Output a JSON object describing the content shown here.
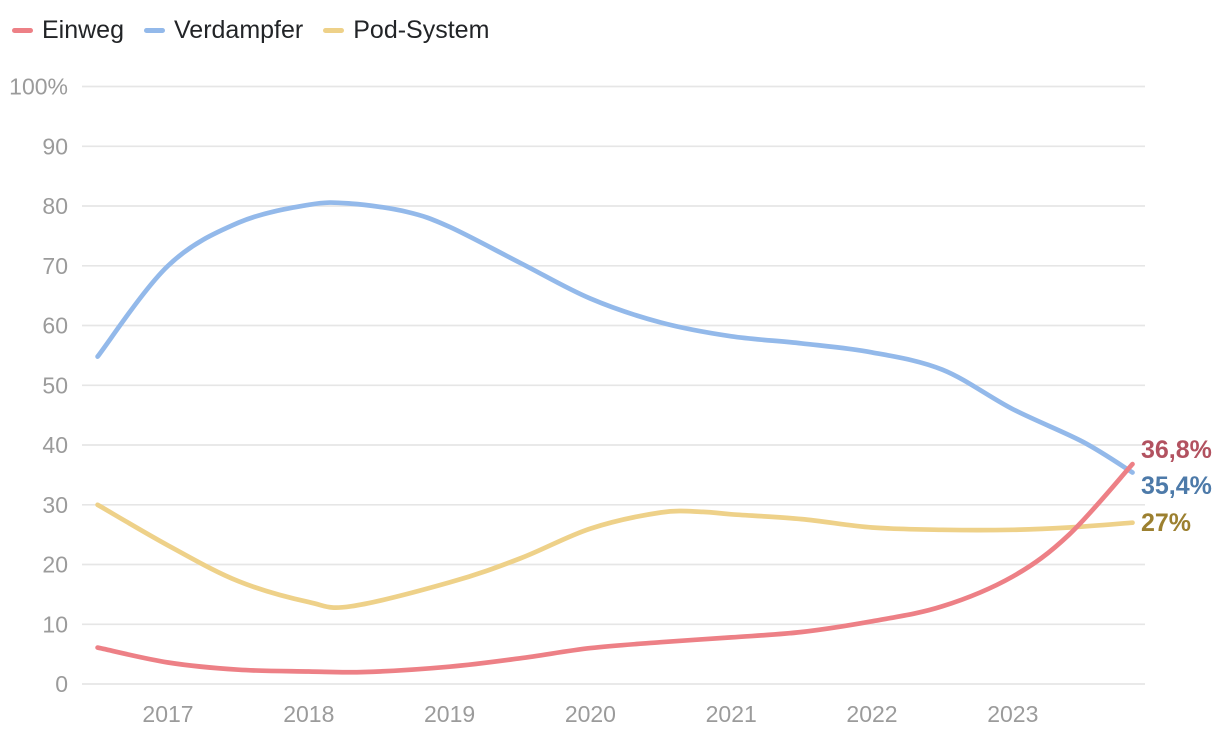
{
  "chart_data": {
    "type": "line",
    "title": "",
    "xlabel": "",
    "ylabel": "",
    "x_unit": "year",
    "xlim": [
      2016.5,
      2023.85
    ],
    "ylim": [
      0,
      100
    ],
    "grid": true,
    "legend_position": "top-left",
    "x_ticks": [
      {
        "value": 2017,
        "label": "2017"
      },
      {
        "value": 2018,
        "label": "2018"
      },
      {
        "value": 2019,
        "label": "2019"
      },
      {
        "value": 2020,
        "label": "2020"
      },
      {
        "value": 2021,
        "label": "2021"
      },
      {
        "value": 2022,
        "label": "2022"
      },
      {
        "value": 2023,
        "label": "2023"
      }
    ],
    "y_ticks": [
      {
        "value": 0,
        "label": "0"
      },
      {
        "value": 10,
        "label": "10"
      },
      {
        "value": 20,
        "label": "20"
      },
      {
        "value": 30,
        "label": "30"
      },
      {
        "value": 40,
        "label": "40"
      },
      {
        "value": 50,
        "label": "50"
      },
      {
        "value": 60,
        "label": "60"
      },
      {
        "value": 70,
        "label": "70"
      },
      {
        "value": 80,
        "label": "80"
      },
      {
        "value": 90,
        "label": "90"
      },
      {
        "value": 100,
        "label": "100%"
      }
    ],
    "series": [
      {
        "name": "Einweg",
        "color": "#ed8086",
        "end_label": "36,8%",
        "end_label_color": "#b25260",
        "end_value": 36.8,
        "points": [
          [
            2016.5,
            6.1
          ],
          [
            2017,
            3.6
          ],
          [
            2017.5,
            2.4
          ],
          [
            2018,
            2.1
          ],
          [
            2018.4,
            2.0
          ],
          [
            2019,
            2.9
          ],
          [
            2019.5,
            4.3
          ],
          [
            2020,
            6.0
          ],
          [
            2020.5,
            7.0
          ],
          [
            2021,
            7.8
          ],
          [
            2021.5,
            8.7
          ],
          [
            2022,
            10.5
          ],
          [
            2022.5,
            13.0
          ],
          [
            2023,
            18.0
          ],
          [
            2023.4,
            25.0
          ],
          [
            2023.85,
            36.8
          ]
        ]
      },
      {
        "name": "Verdampfer",
        "color": "#93b9ea",
        "end_label": "35,4%",
        "end_label_color": "#4d7aa9",
        "end_value": 35.4,
        "points": [
          [
            2016.5,
            54.8
          ],
          [
            2017,
            70.0
          ],
          [
            2017.5,
            77.2
          ],
          [
            2018,
            80.2
          ],
          [
            2018.3,
            80.4
          ],
          [
            2018.7,
            79.0
          ],
          [
            2019,
            76.5
          ],
          [
            2019.5,
            70.5
          ],
          [
            2020,
            64.5
          ],
          [
            2020.5,
            60.5
          ],
          [
            2021,
            58.2
          ],
          [
            2021.5,
            57.0
          ],
          [
            2022,
            55.5
          ],
          [
            2022.5,
            52.6
          ],
          [
            2023,
            46.0
          ],
          [
            2023.5,
            40.5
          ],
          [
            2023.85,
            35.4
          ]
        ]
      },
      {
        "name": "Pod-System",
        "color": "#eed189",
        "end_label": "27%",
        "end_label_color": "#9c8030",
        "end_value": 27.0,
        "points": [
          [
            2016.5,
            30.0
          ],
          [
            2017,
            23.2
          ],
          [
            2017.5,
            17.2
          ],
          [
            2018,
            13.7
          ],
          [
            2018.3,
            13.0
          ],
          [
            2019,
            17.0
          ],
          [
            2019.5,
            21.0
          ],
          [
            2020,
            26.0
          ],
          [
            2020.5,
            28.7
          ],
          [
            2020.8,
            28.8
          ],
          [
            2021,
            28.4
          ],
          [
            2021.5,
            27.6
          ],
          [
            2022,
            26.2
          ],
          [
            2022.5,
            25.8
          ],
          [
            2023,
            25.8
          ],
          [
            2023.4,
            26.2
          ],
          [
            2023.85,
            27.0
          ]
        ]
      }
    ]
  },
  "axis": {
    "text_color": "#9b9b9b",
    "grid_color": "#e6e6e6"
  },
  "legend": {
    "text_color": "#222427"
  },
  "background_color": "#ffffff"
}
